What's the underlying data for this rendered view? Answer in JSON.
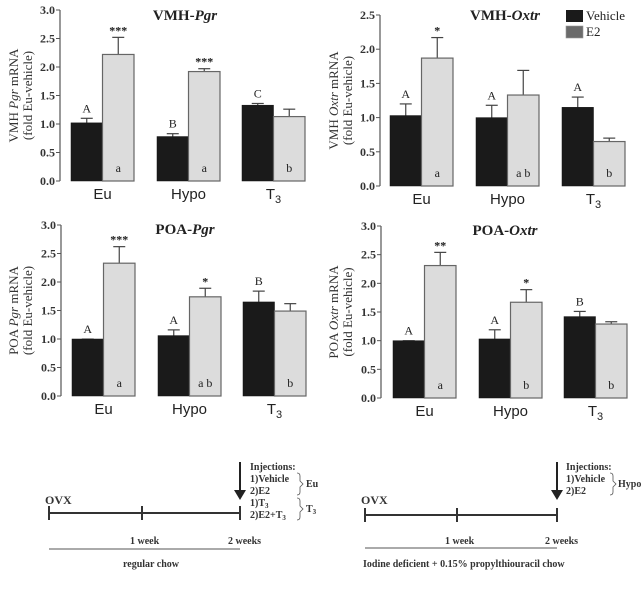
{
  "chart_data": [
    {
      "type": "bar",
      "title_prefix": "VMH-",
      "title_gene": "Pgr",
      "ylabel_line1_prefix": "VMH ",
      "ylabel_line1_gene": "Pgr",
      "ylabel_line1_suffix": " mRNA",
      "ylabel_line2": "(fold Eu-vehicle)",
      "ylim": [
        0,
        3.0
      ],
      "yticks": [
        "0.0",
        "0.5",
        "1.0",
        "1.5",
        "2.0",
        "2.5",
        "3.0"
      ],
      "categories": [
        "Eu",
        "Hypo",
        "T3"
      ],
      "series": [
        {
          "name": "Vehicle",
          "values": [
            1.02,
            0.78,
            1.33
          ],
          "errors": [
            0.08,
            0.05,
            0.03
          ],
          "letters": [
            "A",
            "B",
            "C"
          ]
        },
        {
          "name": "E2",
          "values": [
            2.22,
            1.92,
            1.13
          ],
          "errors": [
            0.3,
            0.05,
            0.13
          ],
          "letters": [
            "a",
            "a",
            "b"
          ],
          "stars": [
            "***",
            "***",
            ""
          ]
        }
      ]
    },
    {
      "type": "bar",
      "title_prefix": "VMH-",
      "title_gene": "Oxtr",
      "ylabel_line1_prefix": "VMH ",
      "ylabel_line1_gene": "Oxtr",
      "ylabel_line1_suffix": " mRNA",
      "ylabel_line2": "(fold Eu-vehicle)",
      "ylim": [
        0,
        2.5
      ],
      "yticks": [
        "0.0",
        "0.5",
        "1.0",
        "1.5",
        "2.0",
        "2.5"
      ],
      "categories": [
        "Eu",
        "Hypo",
        "T3"
      ],
      "series": [
        {
          "name": "Vehicle",
          "values": [
            1.03,
            1.0,
            1.15
          ],
          "errors": [
            0.17,
            0.18,
            0.15
          ],
          "letters": [
            "A",
            "A",
            "A"
          ]
        },
        {
          "name": "E2",
          "values": [
            1.87,
            1.33,
            0.65
          ],
          "errors": [
            0.3,
            0.36,
            0.05
          ],
          "letters": [
            "a",
            "a b",
            "b"
          ],
          "stars": [
            "*",
            "",
            ""
          ]
        }
      ],
      "legend": [
        {
          "label": "Vehicle",
          "color": "#1a1a1a"
        },
        {
          "label": "E2",
          "color": "#6b6b6b"
        }
      ],
      "legend_position": "top-right"
    },
    {
      "type": "bar",
      "title_prefix": "POA-",
      "title_gene": "Pgr",
      "ylabel_line1_prefix": "POA ",
      "ylabel_line1_gene": "Pgr",
      "ylabel_line1_suffix": " mRNA",
      "ylabel_line2": "(fold Eu-vehicle)",
      "ylim": [
        0,
        3.0
      ],
      "yticks": [
        "0.0",
        "0.5",
        "1.0",
        "1.5",
        "2.0",
        "2.5",
        "3.0"
      ],
      "categories": [
        "Eu",
        "Hypo",
        "T3"
      ],
      "series": [
        {
          "name": "Vehicle",
          "values": [
            1.0,
            1.06,
            1.65
          ],
          "errors": [
            0.0,
            0.1,
            0.19
          ],
          "letters": [
            "A",
            "A",
            "B"
          ]
        },
        {
          "name": "E2",
          "values": [
            2.33,
            1.74,
            1.49
          ],
          "errors": [
            0.29,
            0.15,
            0.13
          ],
          "letters": [
            "a",
            "a b",
            "b"
          ],
          "stars": [
            "***",
            "*",
            ""
          ]
        }
      ]
    },
    {
      "type": "bar",
      "title_prefix": "POA-",
      "title_gene": "Oxtr",
      "ylabel_line1_prefix": "POA ",
      "ylabel_line1_gene": "Oxtr",
      "ylabel_line1_suffix": " mRNA",
      "ylabel_line2": "(fold Eu-vehicle)",
      "ylim": [
        0,
        3.0
      ],
      "yticks": [
        "0.0",
        "0.5",
        "1.0",
        "1.5",
        "2.0",
        "2.5",
        "3.0"
      ],
      "categories": [
        "Eu",
        "Hypo",
        "T3"
      ],
      "series": [
        {
          "name": "Vehicle",
          "values": [
            1.0,
            1.03,
            1.42
          ],
          "errors": [
            0.0,
            0.16,
            0.09
          ],
          "letters": [
            "A",
            "A",
            "B"
          ]
        },
        {
          "name": "E2",
          "values": [
            2.31,
            1.67,
            1.29
          ],
          "errors": [
            0.23,
            0.22,
            0.04
          ],
          "letters": [
            "a",
            "b",
            "b"
          ],
          "stars": [
            "**",
            "*",
            ""
          ]
        }
      ]
    }
  ],
  "colors": {
    "vehicle": "#1a1a1a",
    "e2_bar": "#dcdcdc",
    "e2_legend": "#6b6b6b"
  },
  "timelines": [
    {
      "start_label": "OVX",
      "tick1_label": "1 week",
      "tick2_label": "2 weeks",
      "chow_label": "regular chow",
      "injections_title": "Injections:",
      "injections": [
        "1)Vehicle",
        "2)E2",
        "1)T",
        "2)E2+T"
      ],
      "groups": [
        "Eu",
        "T"
      ]
    },
    {
      "start_label": "OVX",
      "tick1_label": "1 week",
      "tick2_label": "2 weeks",
      "chow_label": "Iodine deficient + 0.15% propylthiouracil chow",
      "injections_title": "Injections:",
      "injections": [
        "1)Vehicle",
        "2)E2"
      ],
      "groups": [
        "Hypo"
      ]
    }
  ]
}
